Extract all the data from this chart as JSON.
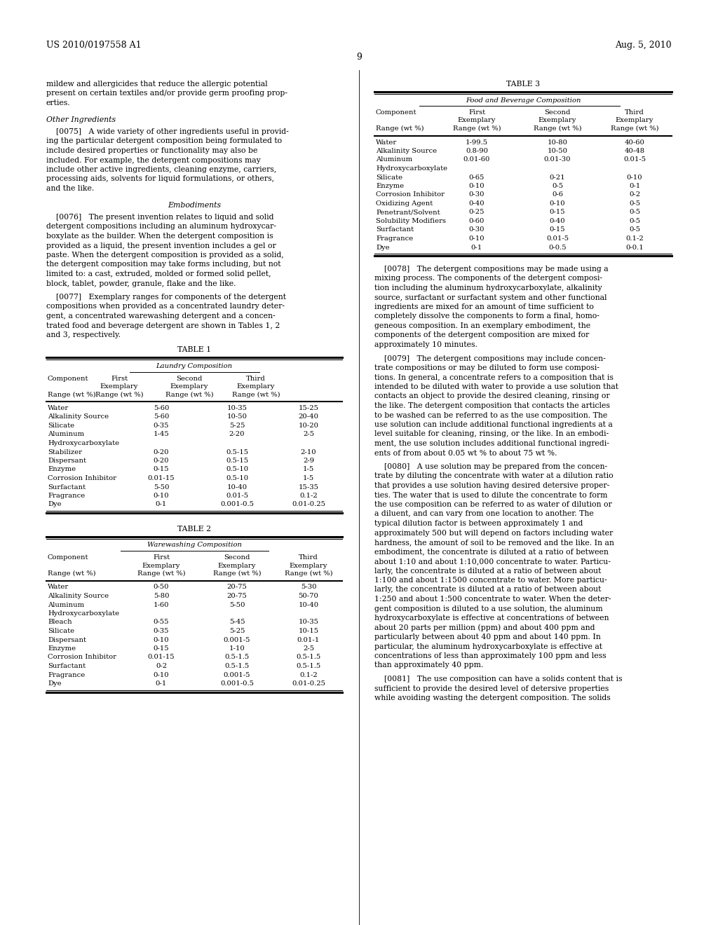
{
  "bg_color": "#ffffff",
  "header_left": "US 2010/0197558 A1",
  "header_right": "Aug. 5, 2010",
  "page_number": "9",
  "table1": {
    "title": "Laundry Composition",
    "rows": [
      [
        "Water",
        "5-60",
        "10-35",
        "15-25"
      ],
      [
        "Alkalinity Source",
        "5-60",
        "10-50",
        "20-40"
      ],
      [
        "Silicate",
        "0-35",
        "5-25",
        "10-20"
      ],
      [
        "Aluminum\nHydroxycarboxylate",
        "1-45",
        "2-20",
        "2-5"
      ],
      [
        "Stabilizer",
        "0-20",
        "0.5-15",
        "2-10"
      ],
      [
        "Dispersant",
        "0-20",
        "0.5-15",
        "2-9"
      ],
      [
        "Enzyme",
        "0-15",
        "0.5-10",
        "1-5"
      ],
      [
        "Corrosion Inhibitor",
        "0.01-15",
        "0.5-10",
        "1-5"
      ],
      [
        "Surfactant",
        "5-50",
        "10-40",
        "15-35"
      ],
      [
        "Fragrance",
        "0-10",
        "0.01-5",
        "0.1-2"
      ],
      [
        "Dye",
        "0-1",
        "0.001-0.5",
        "0.01-0.25"
      ]
    ]
  },
  "table2": {
    "title": "Warewashing Composition",
    "rows": [
      [
        "Water",
        "0-50",
        "20-75",
        "5-30"
      ],
      [
        "Alkalinity Source",
        "5-80",
        "20-75",
        "50-70"
      ],
      [
        "Aluminum\nHydroxycarboxylate",
        "1-60",
        "5-50",
        "10-40"
      ],
      [
        "Bleach",
        "0-55",
        "5-45",
        "10-35"
      ],
      [
        "Silicate",
        "0-35",
        "5-25",
        "10-15"
      ],
      [
        "Dispersant",
        "0-10",
        "0.001-5",
        "0.01-1"
      ],
      [
        "Enzyme",
        "0-15",
        "1-10",
        "2-5"
      ],
      [
        "Corrosion Inhibitor",
        "0.01-15",
        "0.5-1.5",
        "0.5-1.5"
      ],
      [
        "Surfactant",
        "0-2",
        "0.5-1.5",
        "0.5-1.5"
      ],
      [
        "Fragrance",
        "0-10",
        "0.001-5",
        "0.1-2"
      ],
      [
        "Dye",
        "0-1",
        "0.001-0.5",
        "0.01-0.25"
      ]
    ]
  },
  "table3": {
    "title": "Food and Beverage Composition",
    "rows": [
      [
        "Water",
        "1-99.5",
        "10-80",
        "40-60"
      ],
      [
        "Alkalinity Source",
        "0.8-90",
        "10-50",
        "40-48"
      ],
      [
        "Aluminum\nHydroxycarboxylate",
        "0.01-60",
        "0.01-30",
        "0.01-5"
      ],
      [
        "Silicate",
        "0-65",
        "0-21",
        "0-10"
      ],
      [
        "Enzyme",
        "0-10",
        "0-5",
        "0-1"
      ],
      [
        "Corrosion Inhibitor",
        "0-30",
        "0-6",
        "0-2"
      ],
      [
        "Oxidizing Agent",
        "0-40",
        "0-10",
        "0-5"
      ],
      [
        "Penetrant/Solvent",
        "0-25",
        "0-15",
        "0-5"
      ],
      [
        "Solubility Modifiers",
        "0-60",
        "0-40",
        "0-5"
      ],
      [
        "Surfactant",
        "0-30",
        "0-15",
        "0-5"
      ],
      [
        "Fragrance",
        "0-10",
        "0.01-5",
        "0.1-2"
      ],
      [
        "Dye",
        "0-1",
        "0-0.5",
        "0-0.1"
      ]
    ]
  }
}
